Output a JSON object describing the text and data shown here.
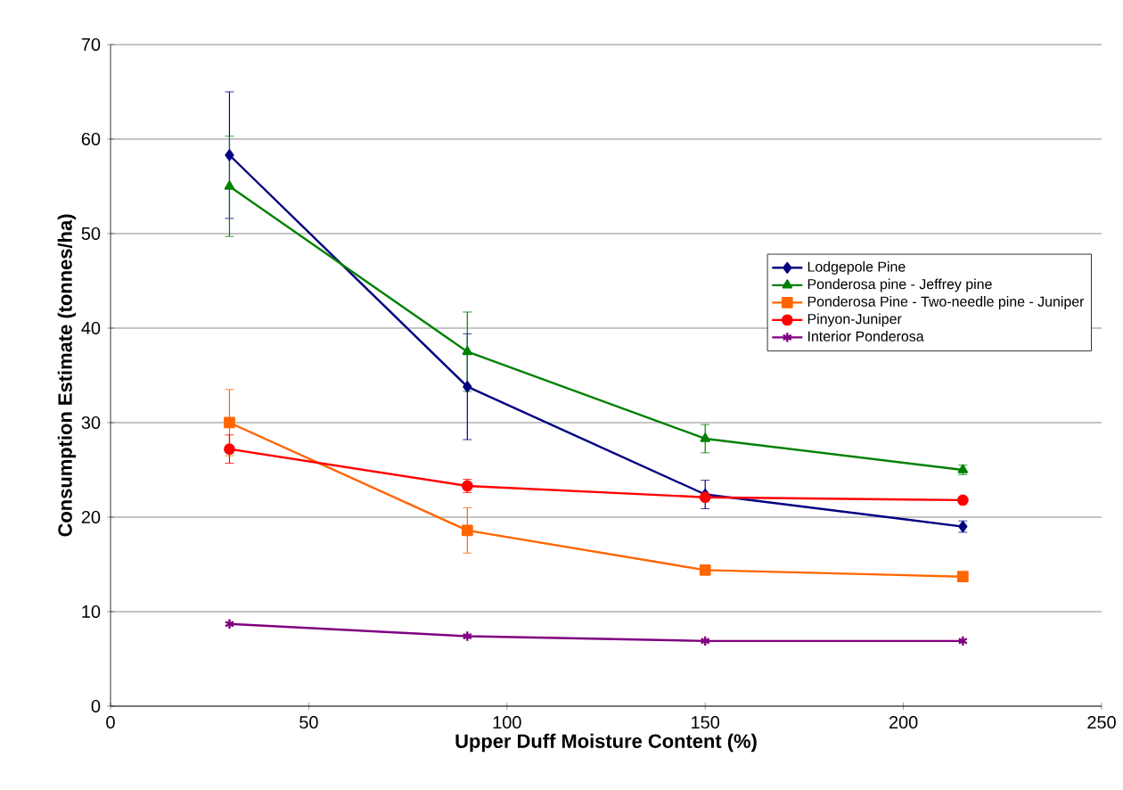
{
  "chart_data": {
    "type": "line",
    "xlabel": "Upper Duff Moisture Content (%)",
    "ylabel": "Consumption Estimate (tonnes/ha)",
    "xlim": [
      0,
      250
    ],
    "xticks": [
      0,
      50,
      100,
      150,
      200,
      250
    ],
    "ylim": [
      0,
      70
    ],
    "yticks": [
      0,
      10,
      20,
      30,
      40,
      50,
      60,
      70
    ],
    "grid": "y",
    "legend": "right",
    "x": [
      30,
      90,
      150,
      215
    ],
    "series": [
      {
        "name": "Lodgepole Pine",
        "color": "#000080",
        "marker": "diamond",
        "values": [
          58.3,
          33.8,
          22.4,
          19.0
        ],
        "errors": [
          6.7,
          5.6,
          1.5,
          0.6
        ]
      },
      {
        "name": "Ponderosa pine - Jeffrey pine",
        "color": "#008000",
        "marker": "triangle",
        "values": [
          55.0,
          37.5,
          28.3,
          25.0
        ],
        "errors": [
          5.3,
          4.2,
          1.5,
          0.5
        ]
      },
      {
        "name": "Ponderosa Pine - Two-needle pine - Juniper",
        "color": "#ff6600",
        "marker": "square",
        "values": [
          30.0,
          18.6,
          14.4,
          13.7
        ],
        "errors": [
          3.5,
          2.4,
          null,
          null
        ]
      },
      {
        "name": "Pinyon-Juniper",
        "color": "#ff0000",
        "marker": "circle",
        "values": [
          27.2,
          23.3,
          22.1,
          21.8
        ],
        "errors": [
          1.5,
          0.7,
          null,
          null
        ]
      },
      {
        "name": "Interior Ponderosa",
        "color": "#800080",
        "marker": "cross",
        "values": [
          8.7,
          7.4,
          6.9,
          6.9
        ]
      }
    ]
  }
}
